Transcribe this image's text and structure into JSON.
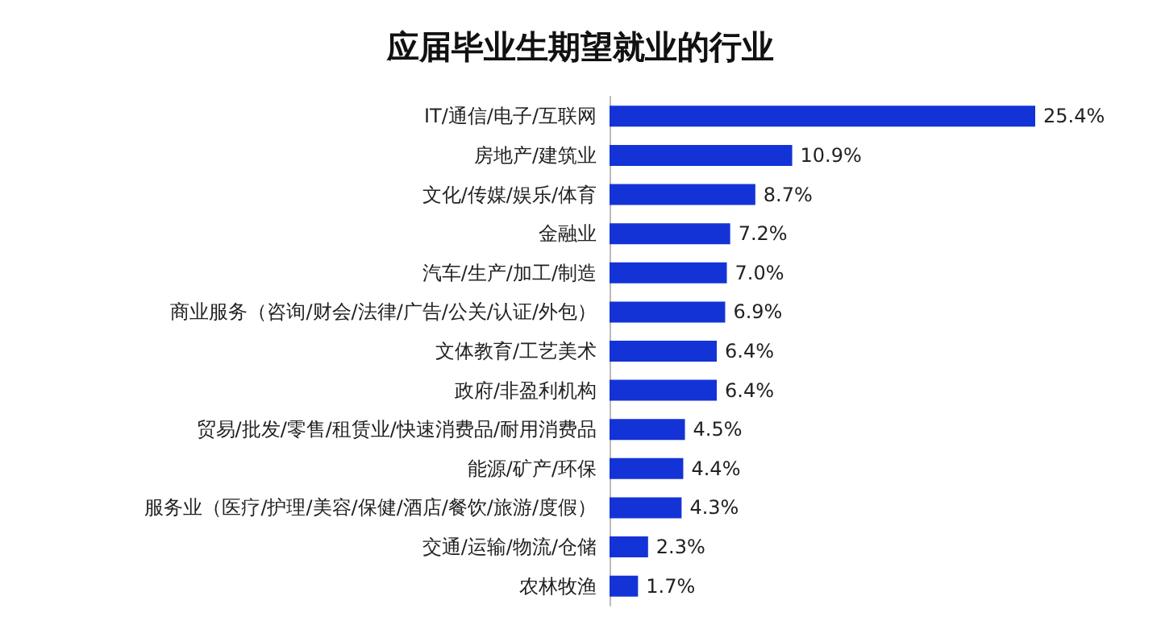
{
  "chart_data": {
    "type": "bar",
    "orientation": "horizontal",
    "title": "应届毕业生期望就业的行业",
    "categories": [
      "IT/通信/电子/互联网",
      "房地产/建筑业",
      "文化/传媒/娱乐/体育",
      "金融业",
      "汽车/生产/加工/制造",
      "商业服务（咨询/财会/法律/广告/公关/认证/外包）",
      "文体教育/工艺美术",
      "政府/非盈利机构",
      "贸易/批发/零售/租赁业/快速消费品/耐用消费品",
      "能源/矿产/环保",
      "服务业（医疗/护理/美容/保健/酒店/餐饮/旅游/度假）",
      "交通/运输/物流/仓储",
      "农林牧渔"
    ],
    "values": [
      25.4,
      10.9,
      8.7,
      7.2,
      7.0,
      6.9,
      6.4,
      6.4,
      4.5,
      4.4,
      4.3,
      2.3,
      1.7
    ],
    "value_labels": [
      "25.4%",
      "10.9%",
      "8.7%",
      "7.2%",
      "7.0%",
      "6.9%",
      "6.4%",
      "6.4%",
      "4.5%",
      "4.4%",
      "4.3%",
      "2.3%",
      "1.7%"
    ],
    "color": "#1433d6"
  }
}
